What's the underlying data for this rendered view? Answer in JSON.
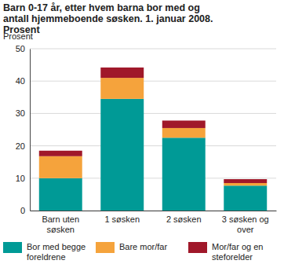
{
  "chart_data": {
    "type": "bar",
    "stacked": true,
    "title": "Barn 0-17 år, etter hvem barna bor med og antall hjemmeboende søsken. 1. januar 2008. Prosent",
    "y_label": "Prosent",
    "categories": [
      "Barn uten søsken",
      "1 søsken",
      "2 søsken",
      "3 søsken og over"
    ],
    "series": [
      {
        "name": "Bor med begge foreldrene",
        "color": "#009a96",
        "values": [
          10,
          34.5,
          22.5,
          7.7
        ]
      },
      {
        "name": "Bare mor/far",
        "color": "#f5a33c",
        "values": [
          6.8,
          6.5,
          3,
          0.8
        ]
      },
      {
        "name": "Mor/far og en steforelder",
        "color": "#a0182a",
        "values": [
          1.7,
          3.2,
          2.3,
          1.2
        ]
      }
    ],
    "ylim": [
      0,
      50
    ],
    "yticks": [
      0,
      10,
      20,
      30,
      40,
      50
    ],
    "grid": true,
    "legend": "bottom"
  }
}
